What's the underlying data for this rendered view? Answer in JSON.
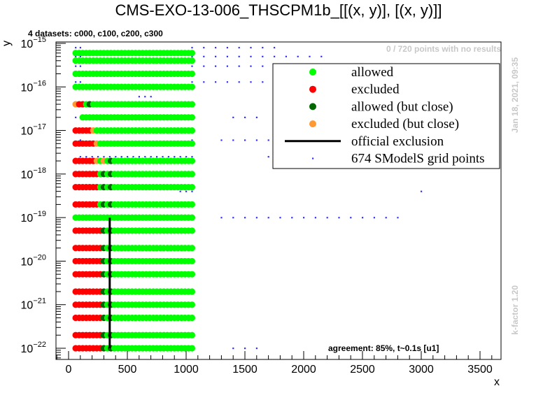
{
  "chart_data": {
    "type": "scatter",
    "title": "CMS-EXO-13-006_THSCPM1b_[[(x, y)], [(x, y)]]",
    "subtitle": "4 datasets: c000, c100, c200, c300",
    "xlabel": "x",
    "ylabel": "y",
    "xlim": [
      -100,
      3700
    ],
    "ylog": true,
    "ylim": [
      5e-23,
      1e-15
    ],
    "x_ticks": [
      {
        "value": 0,
        "label": "0"
      },
      {
        "value": 500,
        "label": "500"
      },
      {
        "value": 1000,
        "label": "1000"
      },
      {
        "value": 1500,
        "label": "1500"
      },
      {
        "value": 2000,
        "label": "2000"
      },
      {
        "value": 2500,
        "label": "2500"
      },
      {
        "value": 3000,
        "label": "3000"
      },
      {
        "value": 3500,
        "label": "3500"
      }
    ],
    "y_ticks": [
      {
        "value": 1e-22,
        "mant": "10",
        "exp": "−22"
      },
      {
        "value": 1e-21,
        "mant": "10",
        "exp": "−21"
      },
      {
        "value": 1e-20,
        "mant": "10",
        "exp": "−20"
      },
      {
        "value": 1e-19,
        "mant": "10",
        "exp": "−19"
      },
      {
        "value": 1e-18,
        "mant": "10",
        "exp": "−18"
      },
      {
        "value": 1e-17,
        "mant": "10",
        "exp": "−17"
      },
      {
        "value": 1e-16,
        "mant": "10",
        "exp": "−16"
      },
      {
        "value": 1e-15,
        "mant": "10",
        "exp": "−15"
      }
    ],
    "colors": {
      "allowed": "#00ff00",
      "excluded": "#ff0000",
      "allowed_close": "#006600",
      "excluded_close": "#ff9933",
      "grid_points": "#3030ff",
      "official": "#000000"
    },
    "legend": {
      "placement": "top-right",
      "entries": [
        {
          "label": "allowed",
          "kind": "allowed"
        },
        {
          "label": "excluded",
          "kind": "excluded"
        },
        {
          "label": "allowed (but close)",
          "kind": "allowed_close"
        },
        {
          "label": "excluded (but close)",
          "kind": "excluded_close"
        },
        {
          "label": "official exclusion",
          "kind": "line"
        },
        {
          "label": "674 SModelS grid points",
          "kind": "grid"
        }
      ]
    },
    "marker_rows": [
      {
        "y": 1e-22,
        "x_min": 60,
        "x_max": 1050,
        "excluded_until": 290,
        "allowed_close": [
          300,
          350
        ],
        "excluded_close": []
      },
      {
        "y": 2e-22,
        "x_min": 60,
        "x_max": 1050,
        "excluded_until": 290,
        "allowed_close": [
          300,
          350
        ],
        "excluded_close": []
      },
      {
        "y": 5e-22,
        "x_min": 60,
        "x_max": 1050,
        "excluded_until": 290,
        "allowed_close": [
          300,
          350
        ],
        "excluded_close": []
      },
      {
        "y": 1e-21,
        "x_min": 60,
        "x_max": 1050,
        "excluded_until": 290,
        "allowed_close": [
          300,
          350
        ],
        "excluded_close": []
      },
      {
        "y": 2e-21,
        "x_min": 60,
        "x_max": 1050,
        "excluded_until": 290,
        "allowed_close": [
          300,
          350
        ],
        "excluded_close": []
      },
      {
        "y": 5e-21,
        "x_min": 60,
        "x_max": 1050,
        "excluded_until": 290,
        "allowed_close": [
          300,
          350
        ],
        "excluded_close": []
      },
      {
        "y": 1e-20,
        "x_min": 60,
        "x_max": 1050,
        "excluded_until": 290,
        "allowed_close": [
          300,
          350
        ],
        "excluded_close": []
      },
      {
        "y": 2e-20,
        "x_min": 60,
        "x_max": 1050,
        "excluded_until": 290,
        "allowed_close": [
          300,
          350
        ],
        "excluded_close": []
      },
      {
        "y": 5e-20,
        "x_min": 60,
        "x_max": 1050,
        "excluded_until": 290,
        "allowed_close": [
          300,
          350
        ],
        "excluded_close": []
      },
      {
        "y": 1e-19,
        "x_min": 60,
        "x_max": 1050,
        "excluded_until": 0,
        "allowed_close": [],
        "excluded_close": []
      },
      {
        "y": 2e-19,
        "x_min": 60,
        "x_max": 1050,
        "excluded_until": 260,
        "allowed_close": [
          300,
          350
        ],
        "excluded_close": []
      },
      {
        "y": 5e-19,
        "x_min": 60,
        "x_max": 1050,
        "excluded_until": 260,
        "allowed_close": [
          300,
          350
        ],
        "excluded_close": []
      },
      {
        "y": 1e-18,
        "x_min": 60,
        "x_max": 1050,
        "excluded_until": 260,
        "allowed_close": [
          300,
          350
        ],
        "excluded_close": []
      },
      {
        "y": 2e-18,
        "x_min": 60,
        "x_max": 1050,
        "excluded_until": 240,
        "allowed_close": [
          350
        ],
        "excluded_close": [
          250,
          300
        ]
      },
      {
        "y": 5e-18,
        "x_min": 60,
        "x_max": 1050,
        "excluded_until": 240,
        "allowed_close": [],
        "excluded_close": [
          250
        ]
      },
      {
        "y": 1e-17,
        "x_min": 60,
        "x_max": 1050,
        "excluded_until": 210,
        "allowed_close": [],
        "excluded_close": [
          220
        ]
      },
      {
        "y": 2e-17,
        "x_min": 120,
        "x_max": 1050,
        "excluded_until": 0,
        "allowed_close": [],
        "excluded_close": []
      },
      {
        "y": 4e-17,
        "x_min": 60,
        "x_max": 1050,
        "excluded_until": 120,
        "allowed_close": [
          180
        ],
        "excluded_close": [
          60
        ]
      },
      {
        "y": 1e-16,
        "x_min": 60,
        "x_max": 1050,
        "excluded_until": 0,
        "allowed_close": [],
        "excluded_close": []
      },
      {
        "y": 2e-16,
        "x_min": 60,
        "x_max": 1050,
        "excluded_until": 0,
        "allowed_close": [],
        "excluded_close": []
      },
      {
        "y": 4e-16,
        "x_min": 60,
        "x_max": 1050,
        "excluded_until": 0,
        "allowed_close": [],
        "excluded_close": []
      },
      {
        "y": 6e-16,
        "x_min": 60,
        "x_max": 1050,
        "excluded_until": 0,
        "allowed_close": [],
        "excluded_close": []
      }
    ],
    "marker_x_step": 30,
    "official_exclusion": [
      [
        350,
        1e-22
      ],
      [
        350,
        1e-19
      ]
    ],
    "grid_point_rows": [
      {
        "y": 1e-22,
        "x": [
          60,
          100,
          250,
          1400,
          1500,
          1600
        ]
      },
      {
        "y": 1e-19,
        "x": [
          100,
          200,
          300,
          1050,
          1300,
          1400,
          1500,
          1600,
          1700,
          1800,
          1900,
          2000,
          2100,
          2200,
          2300,
          2400,
          2500,
          2600,
          2700,
          2800
        ]
      },
      {
        "y": 4e-19,
        "x": [
          950,
          1000,
          1050,
          3000
        ]
      },
      {
        "y": 2.5e-18,
        "x": [
          100,
          150,
          200,
          250,
          300,
          350,
          400,
          450,
          500,
          550,
          600,
          650,
          700,
          750,
          800,
          850,
          900,
          950,
          1000,
          1050,
          1700,
          1800,
          1900,
          2000,
          2100,
          2200
        ]
      },
      {
        "y": 6e-18,
        "x": [
          100,
          1050,
          1300,
          1400,
          1500,
          1600,
          1700,
          1800,
          1900,
          2000
        ]
      },
      {
        "y": 2e-17,
        "x": [
          60,
          100,
          1050,
          1400,
          1500,
          1600
        ]
      },
      {
        "y": 4e-17,
        "x": [
          60,
          1050
        ]
      },
      {
        "y": 6e-17,
        "x": [
          600,
          650,
          700
        ]
      },
      {
        "y": 1.3e-16,
        "x": [
          60,
          100,
          1050,
          1150,
          1250,
          1350,
          1450,
          1550,
          1650,
          1750,
          1850,
          1950,
          2050,
          2150
        ]
      },
      {
        "y": 3e-16,
        "x": [
          60,
          100,
          1050,
          1150,
          1250,
          1350,
          1450,
          1550,
          1650,
          1750,
          1850,
          1950,
          2050,
          2150
        ]
      },
      {
        "y": 5e-16,
        "x": [
          60,
          100,
          1050,
          1150,
          1250,
          1350,
          1450,
          1550,
          1650,
          1750,
          1850,
          1950,
          2050,
          2150
        ]
      },
      {
        "y": 8e-16,
        "x": [
          60,
          100,
          1050,
          1150,
          1250,
          1350,
          1450,
          1550,
          1650,
          1750
        ]
      }
    ]
  },
  "annotations": {
    "no_results": "0 / 720 points with no results",
    "timestamp": "Jan 18, 2021, 09:35",
    "kfactor": "k-factor 1.20",
    "agreement": "agreement: 85%, t~0.1s [u1]"
  }
}
